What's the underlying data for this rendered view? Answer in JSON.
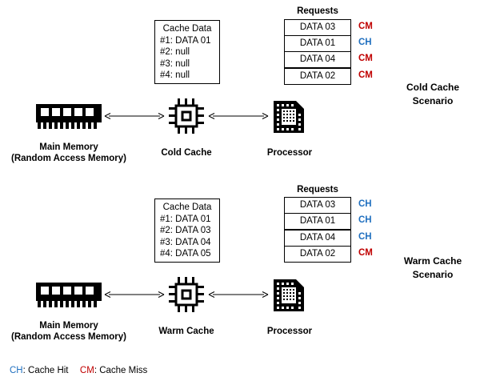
{
  "colors": {
    "hit": "#1f6fbf",
    "miss": "#c00000",
    "line": "#000000"
  },
  "icons": {
    "memory": "ram-icon",
    "cache": "chip-icon",
    "processor": "cpu-icon"
  },
  "cold": {
    "scenario_line1": "Cold Cache",
    "scenario_line2": "Scenario",
    "cache_title": "Cache Data",
    "cache_entries": [
      "#1: DATA 01",
      "#2: null",
      "#3: null",
      "#4: null"
    ],
    "requests_title": "Requests",
    "requests": [
      {
        "label": "DATA 03",
        "tag": "CM",
        "status": "miss"
      },
      {
        "label": "DATA 01",
        "tag": "CH",
        "status": "hit"
      },
      {
        "label": "DATA 04",
        "tag": "CM",
        "status": "miss"
      },
      {
        "label": "DATA 02",
        "tag": "CM",
        "status": "miss"
      }
    ],
    "memory_line1": "Main Memory",
    "memory_line2": "(Random Access Memory)",
    "cache_label": "Cold Cache",
    "processor_label": "Processor"
  },
  "warm": {
    "scenario_line1": "Warm Cache",
    "scenario_line2": "Scenario",
    "cache_title": "Cache Data",
    "cache_entries": [
      "#1: DATA 01",
      "#2: DATA 03",
      "#3: DATA 04",
      "#4: DATA 05"
    ],
    "requests_title": "Requests",
    "requests": [
      {
        "label": "DATA 03",
        "tag": "CH",
        "status": "hit"
      },
      {
        "label": "DATA 01",
        "tag": "CH",
        "status": "hit"
      },
      {
        "label": "DATA 04",
        "tag": "CH",
        "status": "hit"
      },
      {
        "label": "DATA 02",
        "tag": "CM",
        "status": "miss"
      }
    ],
    "memory_line1": "Main Memory",
    "memory_line2": "(Random Access Memory)",
    "cache_label": "Warm Cache",
    "processor_label": "Processor"
  },
  "legend": {
    "hit_abbr": "CH",
    "hit_text": ": Cache Hit",
    "miss_abbr": "CM",
    "miss_text": ": Cache Miss"
  }
}
